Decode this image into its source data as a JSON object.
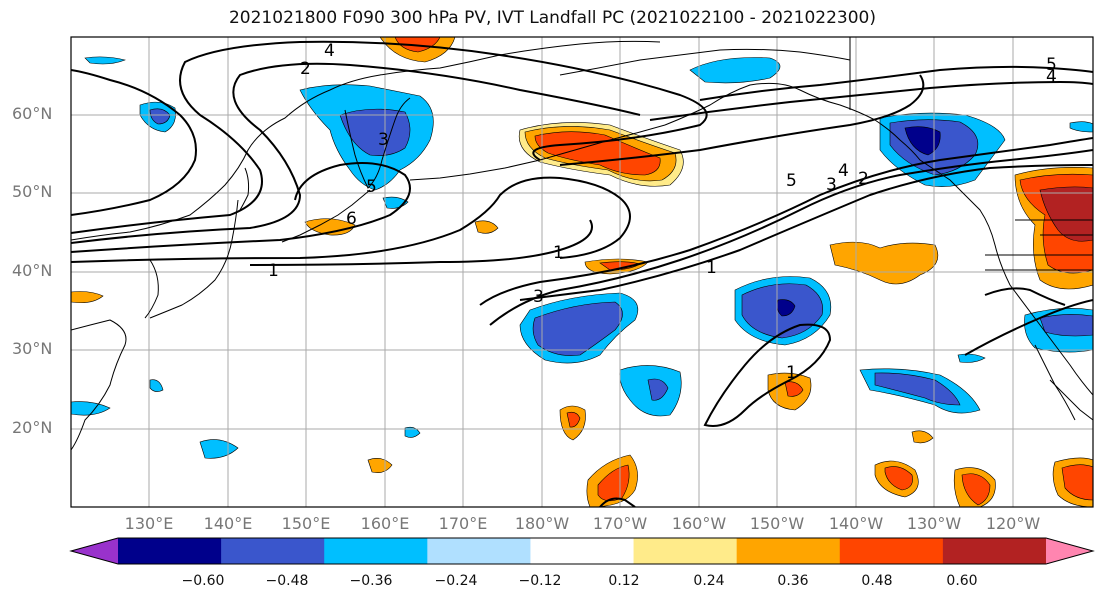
{
  "title": "2021021800 F090 300 hPa PV, IVT Landfall PC (2021022100 - 2021022300)",
  "lat_labels": [
    "60°N",
    "50°N",
    "40°N",
    "30°N",
    "20°N"
  ],
  "lon_labels": [
    "130°E",
    "140°E",
    "150°E",
    "160°E",
    "170°E",
    "180°W",
    "170°W",
    "160°W",
    "150°W",
    "140°W",
    "130°W",
    "120°W"
  ],
  "contour_labels": [
    "4",
    "2",
    "3",
    "5",
    "6",
    "1",
    "1",
    "3",
    "1",
    "5",
    "3",
    "4",
    "2",
    "1",
    "5",
    "4"
  ],
  "colorbar": {
    "ticks": [
      "−0.60",
      "−0.48",
      "−0.36",
      "−0.24",
      "−0.12",
      "0.12",
      "0.24",
      "0.36",
      "0.48",
      "0.60"
    ],
    "colors": [
      "#9932CC",
      "#00008B",
      "#3A56CC",
      "#00BFFF",
      "#B0E0FF",
      "#FFFFFF",
      "#FFEB8A",
      "#FFA500",
      "#FF4500",
      "#B22222",
      "#FF85B0"
    ]
  },
  "colors": {
    "strong_negative": "#3A56CC",
    "very_strong_negative": "#00008B",
    "negative": "#00BFFF",
    "weak_negative": "#B0E0FF",
    "weak_positive": "#FFEB8A",
    "positive": "#FFA500",
    "strong_positive": "#FF4500",
    "very_strong_positive": "#B22222"
  }
}
